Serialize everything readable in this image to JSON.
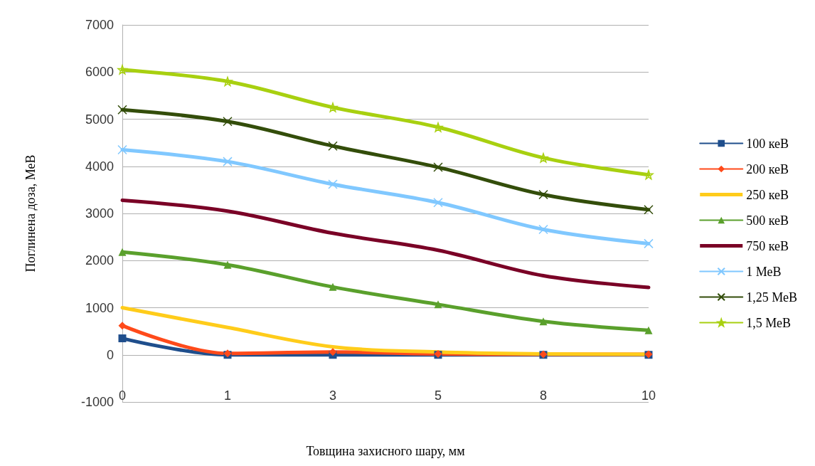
{
  "chart_data": {
    "type": "line",
    "xlabel": "Товщина захисного шару, мм",
    "ylabel": "Поглинена доза, МеВ",
    "categories": [
      "0",
      "1",
      "3",
      "5",
      "8",
      "10"
    ],
    "ylim": [
      -1000,
      7000
    ],
    "yticks": [
      -1000,
      0,
      1000,
      2000,
      3000,
      4000,
      5000,
      6000,
      7000
    ],
    "grid": "y",
    "legend": "right",
    "series": [
      {
        "name": "100 кеВ",
        "color": "#1f4e8c",
        "marker": "square",
        "values": [
          350,
          0,
          0,
          0,
          0,
          0
        ]
      },
      {
        "name": "200 кеВ",
        "color": "#ff4a1a",
        "marker": "diamond",
        "values": [
          620,
          30,
          60,
          20,
          10,
          10
        ]
      },
      {
        "name": "250 кеВ",
        "color": "#ffcc1a",
        "marker": "none",
        "values": [
          1000,
          580,
          170,
          60,
          20,
          10
        ]
      },
      {
        "name": "500 кеВ",
        "color": "#5aa02c",
        "marker": "triangle",
        "values": [
          2180,
          1910,
          1440,
          1070,
          710,
          520
        ]
      },
      {
        "name": "750 кеВ",
        "color": "#7a0026",
        "marker": "none",
        "values": [
          3280,
          3050,
          2580,
          2220,
          1680,
          1430
        ]
      },
      {
        "name": "1 МеВ",
        "color": "#80c8ff",
        "marker": "cross",
        "values": [
          4350,
          4100,
          3620,
          3230,
          2660,
          2360
        ]
      },
      {
        "name": "1,25 МеВ",
        "color": "#334d0a",
        "marker": "cross",
        "values": [
          5200,
          4950,
          4430,
          3980,
          3400,
          3080
        ]
      },
      {
        "name": "1,5 МеВ",
        "color": "#a8d010",
        "marker": "star",
        "values": [
          6050,
          5800,
          5250,
          4830,
          4180,
          3820
        ]
      }
    ]
  }
}
